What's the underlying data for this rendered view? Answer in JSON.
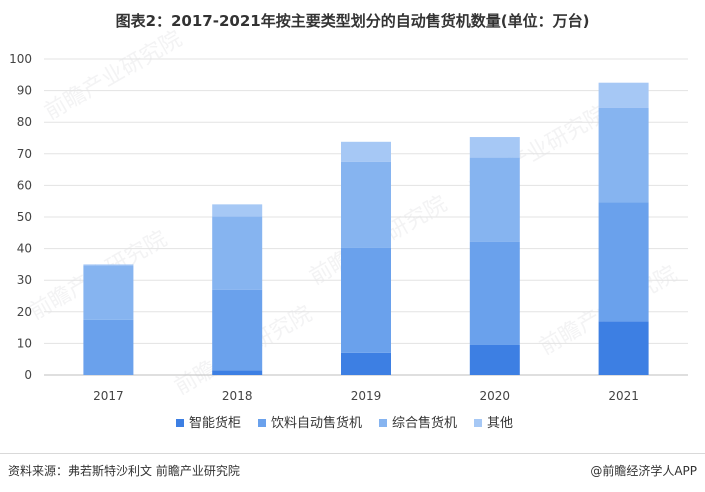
{
  "title": "图表2：2017-2021年按主要类型划分的自动售货机数量(单位：万台)",
  "source": "资料来源：弗若斯特沙利文 前瞻产业研究院",
  "credit": "@前瞻经济学人APP",
  "watermark": "前瞻产业研究院",
  "chart_data": {
    "type": "bar",
    "stacked": true,
    "title": "图表2：2017-2021年按主要类型划分的自动售货机数量(单位：万台)",
    "xlabel": "",
    "ylabel": "",
    "ylim": [
      0,
      100
    ],
    "yticks": [
      0,
      10,
      20,
      30,
      40,
      50,
      60,
      70,
      80,
      90,
      100
    ],
    "grid": true,
    "legend_position": "bottom",
    "categories": [
      "2017",
      "2018",
      "2019",
      "2020",
      "2021"
    ],
    "series": [
      {
        "name": "智能货柜",
        "color": "#3d7fe3",
        "values": [
          0,
          1.5,
          7,
          9.5,
          17
        ]
      },
      {
        "name": "饮料自动售货机",
        "color": "#6aa1ec",
        "values": [
          17.5,
          25.5,
          33.2,
          32.6,
          37.7
        ]
      },
      {
        "name": "综合售货机",
        "color": "#86b4f0",
        "values": [
          17.2,
          23.2,
          27.3,
          26.7,
          29.8
        ]
      },
      {
        "name": "其他",
        "color": "#a6c8f5",
        "values": [
          0.3,
          3.8,
          6.3,
          6.5,
          8
        ]
      }
    ]
  }
}
